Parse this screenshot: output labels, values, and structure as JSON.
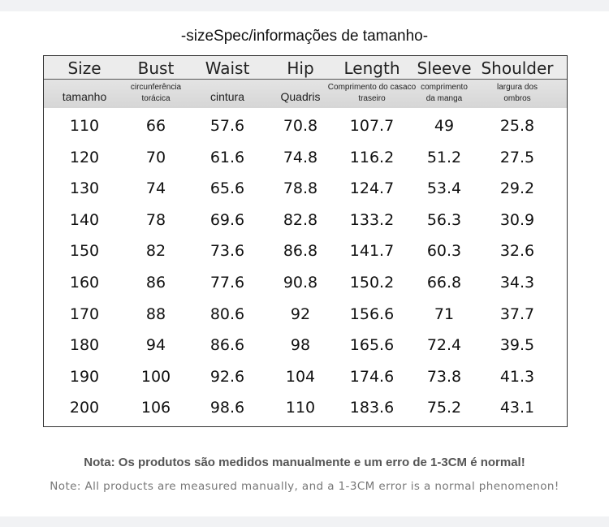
{
  "title": "-sizeSpec/informações de tamanho-",
  "table": {
    "headers": [
      "Size",
      "Bust",
      "Waist",
      "Hip",
      "Length",
      "Sleeve",
      "Shoulder"
    ],
    "subheaders": [
      "tamanho",
      "circunferência torácica",
      "cintura",
      "Quadris",
      "Comprimento do casaco traseiro",
      "comprimento da manga",
      "largura dos ombros"
    ],
    "rows": [
      [
        110,
        66,
        57.6,
        70.8,
        107.7,
        49,
        25.8
      ],
      [
        120,
        70,
        61.6,
        74.8,
        116.2,
        51.2,
        27.5
      ],
      [
        130,
        74,
        65.6,
        78.8,
        124.7,
        53.4,
        29.2
      ],
      [
        140,
        78,
        69.6,
        82.8,
        133.2,
        56.3,
        30.9
      ],
      [
        150,
        82,
        73.6,
        86.8,
        141.7,
        60.3,
        32.6
      ],
      [
        160,
        86,
        77.6,
        90.8,
        150.2,
        66.8,
        34.3
      ],
      [
        170,
        88,
        80.6,
        92,
        156.6,
        71,
        37.7
      ],
      [
        180,
        94,
        86.6,
        98,
        165.6,
        72.4,
        39.5
      ],
      [
        190,
        100,
        92.6,
        104,
        174.6,
        73.8,
        41.3
      ],
      [
        200,
        106,
        98.6,
        110,
        183.6,
        75.2,
        43.1
      ]
    ]
  },
  "notes": [
    "Nota: Os produtos são medidos manualmente e um erro de 1-3CM é normal!",
    "Note: All products are measured manually, and a 1-3CM error is a normal phenomenon!"
  ]
}
